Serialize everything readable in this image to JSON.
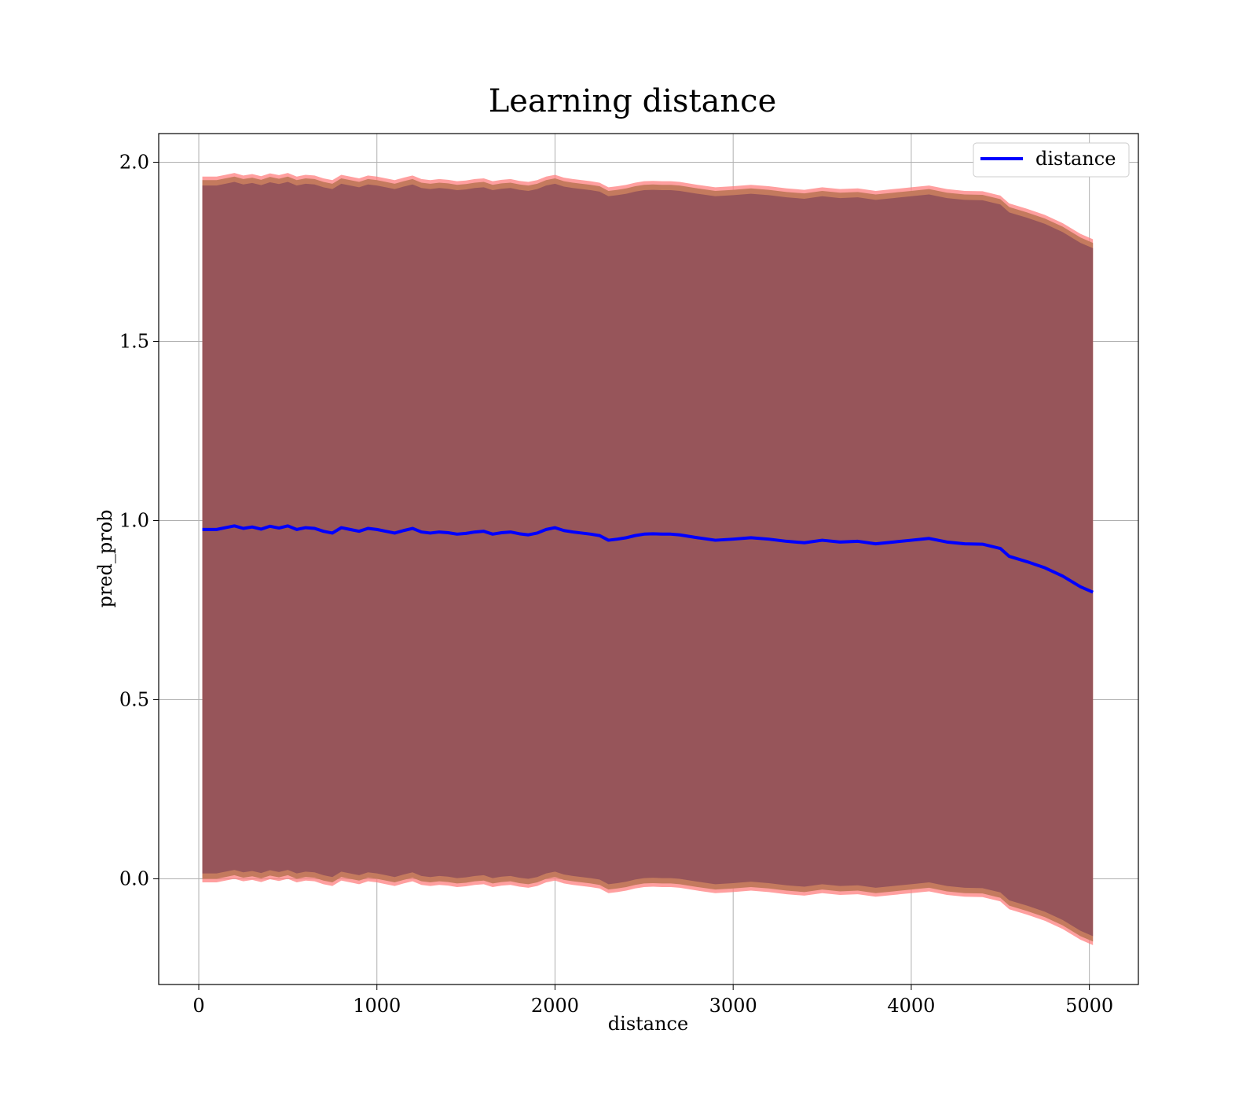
{
  "chart_data": {
    "type": "line",
    "title": "Learning distance",
    "xlabel": "distance",
    "ylabel": "pred_prob",
    "xlim": [
      -225,
      5275
    ],
    "ylim": [
      -0.295,
      2.08
    ],
    "x_ticks": [
      0,
      1000,
      2000,
      3000,
      4000,
      5000
    ],
    "x_tick_labels": [
      "0",
      "1000",
      "2000",
      "3000",
      "4000",
      "5000"
    ],
    "y_ticks": [
      0.0,
      0.5,
      1.0,
      1.5,
      2.0
    ],
    "y_tick_labels": [
      "0.0",
      "0.5",
      "1.0",
      "1.5",
      "2.0"
    ],
    "grid": true,
    "legend_position": "top-right",
    "colors": {
      "line": "#0000ff",
      "outer_band": "#ff7f7f",
      "inner_band": "#8b4a5a",
      "mid_band": "#c47a5e"
    },
    "series": [
      {
        "name": "distance",
        "x": [
          20,
          60,
          100,
          150,
          200,
          250,
          300,
          350,
          400,
          450,
          500,
          550,
          600,
          650,
          700,
          750,
          800,
          850,
          900,
          950,
          1000,
          1050,
          1100,
          1150,
          1200,
          1250,
          1300,
          1350,
          1400,
          1450,
          1500,
          1550,
          1600,
          1650,
          1700,
          1750,
          1800,
          1850,
          1900,
          1950,
          2000,
          2050,
          2100,
          2150,
          2200,
          2250,
          2300,
          2350,
          2400,
          2450,
          2500,
          2550,
          2600,
          2650,
          2700,
          2800,
          2900,
          3000,
          3100,
          3200,
          3300,
          3400,
          3500,
          3600,
          3700,
          3800,
          3900,
          4000,
          4100,
          4200,
          4300,
          4400,
          4500,
          4550,
          4650,
          4750,
          4850,
          4950,
          5020
        ],
        "values": [
          0.975,
          0.975,
          0.975,
          0.98,
          0.985,
          0.978,
          0.982,
          0.976,
          0.984,
          0.979,
          0.985,
          0.975,
          0.98,
          0.978,
          0.97,
          0.965,
          0.98,
          0.975,
          0.97,
          0.978,
          0.975,
          0.97,
          0.965,
          0.972,
          0.978,
          0.968,
          0.965,
          0.968,
          0.966,
          0.962,
          0.964,
          0.968,
          0.97,
          0.962,
          0.966,
          0.968,
          0.963,
          0.96,
          0.965,
          0.975,
          0.98,
          0.972,
          0.968,
          0.965,
          0.962,
          0.958,
          0.945,
          0.948,
          0.952,
          0.958,
          0.962,
          0.963,
          0.962,
          0.962,
          0.96,
          0.952,
          0.945,
          0.948,
          0.952,
          0.948,
          0.942,
          0.938,
          0.945,
          0.94,
          0.942,
          0.935,
          0.94,
          0.945,
          0.95,
          0.94,
          0.935,
          0.934,
          0.922,
          0.9,
          0.885,
          0.868,
          0.845,
          0.815,
          0.8
        ]
      }
    ],
    "band_offsets": {
      "outer": 0.985,
      "mid": 0.975,
      "inner": 0.96
    }
  }
}
